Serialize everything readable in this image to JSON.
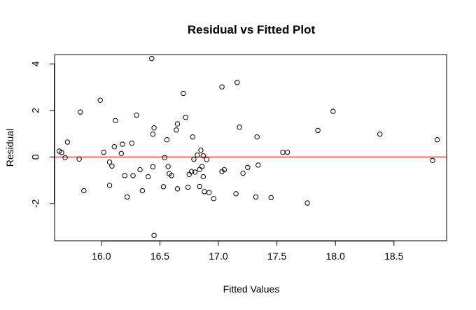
{
  "chart_data": {
    "type": "scatter",
    "title": "Residual vs Fitted Plot",
    "xlabel": "Fitted Values",
    "ylabel": "Residual",
    "xlim": [
      15.6,
      18.95
    ],
    "ylim": [
      -3.6,
      4.4
    ],
    "xticks": [
      16.0,
      16.5,
      17.0,
      17.5,
      18.0,
      18.5
    ],
    "xtick_labels": [
      "16.0",
      "16.5",
      "17.0",
      "17.5",
      "18.0",
      "18.5"
    ],
    "yticks": [
      -2,
      0,
      2,
      4
    ],
    "ytick_labels": [
      "-2",
      "0",
      "2",
      "4"
    ],
    "reference_line": {
      "y": 0,
      "color": "#ff0000"
    },
    "grid": false,
    "points": [
      {
        "x": 15.64,
        "y": 0.25
      },
      {
        "x": 15.66,
        "y": 0.19
      },
      {
        "x": 15.69,
        "y": -0.03
      },
      {
        "x": 15.71,
        "y": 0.64
      },
      {
        "x": 15.81,
        "y": -0.09
      },
      {
        "x": 15.82,
        "y": 1.93
      },
      {
        "x": 15.85,
        "y": -1.45
      },
      {
        "x": 15.99,
        "y": 2.44
      },
      {
        "x": 16.02,
        "y": 0.2
      },
      {
        "x": 16.07,
        "y": -0.22
      },
      {
        "x": 16.07,
        "y": -1.22
      },
      {
        "x": 16.09,
        "y": -0.39
      },
      {
        "x": 16.11,
        "y": 0.44
      },
      {
        "x": 16.12,
        "y": 1.56
      },
      {
        "x": 16.17,
        "y": 0.15
      },
      {
        "x": 16.18,
        "y": 0.55
      },
      {
        "x": 16.2,
        "y": -0.8
      },
      {
        "x": 16.22,
        "y": -1.72
      },
      {
        "x": 16.26,
        "y": 0.59
      },
      {
        "x": 16.27,
        "y": -0.8
      },
      {
        "x": 16.3,
        "y": 1.8
      },
      {
        "x": 16.33,
        "y": -0.55
      },
      {
        "x": 16.35,
        "y": -1.45
      },
      {
        "x": 16.4,
        "y": -0.85
      },
      {
        "x": 16.43,
        "y": 4.23
      },
      {
        "x": 16.44,
        "y": 0.98
      },
      {
        "x": 16.44,
        "y": -0.42
      },
      {
        "x": 16.45,
        "y": 1.25
      },
      {
        "x": 16.45,
        "y": -3.37
      },
      {
        "x": 16.53,
        "y": -1.28
      },
      {
        "x": 16.54,
        "y": -0.03
      },
      {
        "x": 16.56,
        "y": 0.74
      },
      {
        "x": 16.57,
        "y": -0.41
      },
      {
        "x": 16.58,
        "y": -0.72
      },
      {
        "x": 16.6,
        "y": -0.8
      },
      {
        "x": 16.64,
        "y": 1.16
      },
      {
        "x": 16.65,
        "y": 1.42
      },
      {
        "x": 16.65,
        "y": -1.37
      },
      {
        "x": 16.7,
        "y": 2.73
      },
      {
        "x": 16.72,
        "y": 1.7
      },
      {
        "x": 16.74,
        "y": -1.3
      },
      {
        "x": 16.75,
        "y": -0.75
      },
      {
        "x": 16.77,
        "y": -0.63
      },
      {
        "x": 16.78,
        "y": 0.86
      },
      {
        "x": 16.79,
        "y": -0.1
      },
      {
        "x": 16.8,
        "y": -0.65
      },
      {
        "x": 16.82,
        "y": 0.08
      },
      {
        "x": 16.84,
        "y": -1.27
      },
      {
        "x": 16.84,
        "y": -0.54
      },
      {
        "x": 16.85,
        "y": 0.29
      },
      {
        "x": 16.86,
        "y": -0.41
      },
      {
        "x": 16.87,
        "y": -0.85
      },
      {
        "x": 16.87,
        "y": 0.05
      },
      {
        "x": 16.88,
        "y": -1.49
      },
      {
        "x": 16.9,
        "y": -0.11
      },
      {
        "x": 16.92,
        "y": -1.53
      },
      {
        "x": 16.96,
        "y": -1.79
      },
      {
        "x": 17.03,
        "y": 3.01
      },
      {
        "x": 17.03,
        "y": -0.63
      },
      {
        "x": 17.05,
        "y": -0.55
      },
      {
        "x": 17.15,
        "y": -1.58
      },
      {
        "x": 17.16,
        "y": 3.2
      },
      {
        "x": 17.18,
        "y": 1.28
      },
      {
        "x": 17.21,
        "y": -0.7
      },
      {
        "x": 17.25,
        "y": -0.45
      },
      {
        "x": 17.32,
        "y": -1.72
      },
      {
        "x": 17.33,
        "y": 0.86
      },
      {
        "x": 17.34,
        "y": -0.35
      },
      {
        "x": 17.45,
        "y": -1.75
      },
      {
        "x": 17.55,
        "y": 0.2
      },
      {
        "x": 17.59,
        "y": 0.2
      },
      {
        "x": 17.76,
        "y": -1.98
      },
      {
        "x": 17.85,
        "y": 1.14
      },
      {
        "x": 17.98,
        "y": 1.96
      },
      {
        "x": 18.38,
        "y": 0.98
      },
      {
        "x": 18.83,
        "y": -0.15
      },
      {
        "x": 18.87,
        "y": 0.74
      }
    ]
  }
}
